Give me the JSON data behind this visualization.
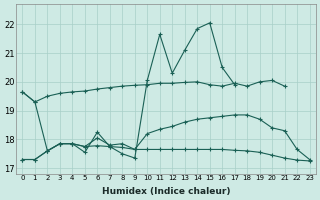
{
  "xlabel": "Humidex (Indice chaleur)",
  "xlim": [
    -0.5,
    23.5
  ],
  "ylim": [
    16.8,
    22.7
  ],
  "yticks": [
    17,
    18,
    19,
    20,
    21,
    22
  ],
  "xticks": [
    0,
    1,
    2,
    3,
    4,
    5,
    6,
    7,
    8,
    9,
    10,
    11,
    12,
    13,
    14,
    15,
    16,
    17,
    18,
    19,
    20,
    21,
    22,
    23
  ],
  "xtick_labels": [
    "0",
    "1",
    "2",
    "3",
    "4",
    "5",
    "6",
    "7",
    "8",
    "9",
    "10",
    "11",
    "12",
    "13",
    "14",
    "15",
    "16",
    "17",
    "18",
    "19",
    "20",
    "21",
    "22",
    "23"
  ],
  "background_color": "#ceeae4",
  "grid_color": "#a8cfc8",
  "line_color": "#1a6055",
  "lines": [
    {
      "x": [
        0,
        1,
        2,
        3,
        4,
        5,
        6,
        7,
        8,
        9,
        10,
        11,
        12,
        13,
        14,
        15,
        16,
        17,
        18,
        19,
        20,
        21
      ],
      "y": [
        19.65,
        19.3,
        19.5,
        19.6,
        19.65,
        19.68,
        19.75,
        19.8,
        19.85,
        19.88,
        19.9,
        19.95,
        19.95,
        19.98,
        20.0,
        19.9,
        19.85,
        19.95,
        19.85,
        20.0,
        20.05,
        19.85
      ]
    },
    {
      "x": [
        0,
        1,
        2,
        3,
        4,
        5,
        6,
        7,
        8,
        9,
        10,
        11,
        12,
        13,
        14,
        15,
        16,
        17
      ],
      "y": [
        19.65,
        19.3,
        17.6,
        17.85,
        17.85,
        17.55,
        18.25,
        17.75,
        17.5,
        17.35,
        20.05,
        21.65,
        20.3,
        21.1,
        21.85,
        22.05,
        20.5,
        19.9
      ]
    },
    {
      "x": [
        0,
        1,
        2,
        3,
        4,
        5,
        6,
        7,
        8,
        9,
        10,
        11,
        12,
        13,
        14,
        15,
        16,
        17,
        18,
        19,
        20,
        21,
        22,
        23
      ],
      "y": [
        17.3,
        17.3,
        17.6,
        17.85,
        17.85,
        17.75,
        18.05,
        17.8,
        17.85,
        17.65,
        18.2,
        18.35,
        18.45,
        18.6,
        18.7,
        18.75,
        18.8,
        18.85,
        18.85,
        18.7,
        18.4,
        18.3,
        17.65,
        17.3
      ]
    },
    {
      "x": [
        0,
        1,
        2,
        3,
        4,
        5,
        6,
        7,
        8,
        9,
        10,
        11,
        12,
        13,
        14,
        15,
        16,
        17,
        18,
        19,
        20,
        21,
        22,
        23
      ],
      "y": [
        17.3,
        17.3,
        17.6,
        17.85,
        17.85,
        17.75,
        17.78,
        17.75,
        17.72,
        17.65,
        17.65,
        17.65,
        17.65,
        17.65,
        17.65,
        17.65,
        17.65,
        17.62,
        17.6,
        17.55,
        17.45,
        17.35,
        17.28,
        17.25
      ]
    }
  ]
}
